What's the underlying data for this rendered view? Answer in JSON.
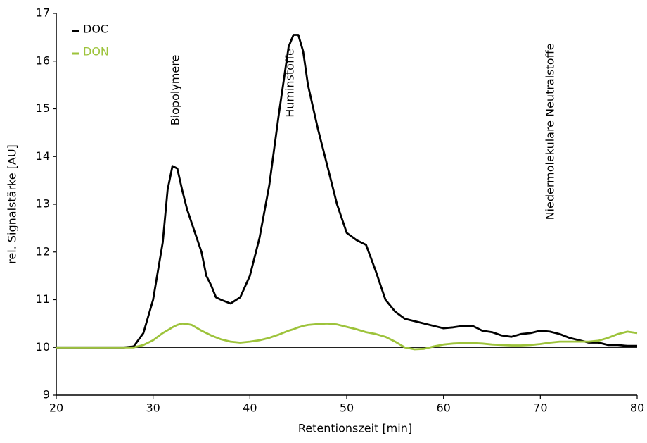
{
  "chart_data": {
    "type": "line",
    "x_label": "Retentionszeit [min]",
    "y_label": "rel. Signalstärke [AU]",
    "x": [
      20,
      24,
      27,
      28,
      29,
      30,
      31,
      31.5,
      32,
      32.5,
      33,
      33.5,
      34,
      35,
      35.5,
      36,
      36.5,
      37,
      38,
      39,
      40,
      41,
      42,
      43,
      44,
      44.5,
      45,
      45.5,
      46,
      47,
      48,
      49,
      50,
      51,
      52,
      53,
      54,
      55,
      56,
      57,
      58,
      59,
      60,
      61,
      62,
      63,
      64,
      65,
      66,
      67,
      68,
      69,
      70,
      71,
      72,
      73,
      74,
      75,
      76,
      77,
      78,
      79,
      80
    ],
    "series": [
      {
        "name": "DOC",
        "color": "#000000",
        "values": [
          10,
          10,
          10,
          10.02,
          10.3,
          11.0,
          12.2,
          13.3,
          13.8,
          13.75,
          13.3,
          12.9,
          12.6,
          12.0,
          11.5,
          11.3,
          11.05,
          11.0,
          10.92,
          11.05,
          11.5,
          12.3,
          13.4,
          14.9,
          16.3,
          16.55,
          16.55,
          16.2,
          15.5,
          14.6,
          13.8,
          13.0,
          12.4,
          12.25,
          12.15,
          11.6,
          11.0,
          10.75,
          10.6,
          10.55,
          10.5,
          10.45,
          10.4,
          10.42,
          10.45,
          10.45,
          10.35,
          10.32,
          10.25,
          10.22,
          10.28,
          10.3,
          10.35,
          10.33,
          10.28,
          10.2,
          10.15,
          10.1,
          10.1,
          10.05,
          10.05,
          10.03,
          10.03
        ]
      },
      {
        "name": "DON",
        "color": "#9dc33b",
        "values": [
          10,
          10,
          10,
          10,
          10.05,
          10.15,
          10.3,
          10.36,
          10.42,
          10.47,
          10.5,
          10.49,
          10.47,
          10.35,
          10.3,
          10.25,
          10.21,
          10.17,
          10.12,
          10.1,
          10.12,
          10.15,
          10.2,
          10.27,
          10.35,
          10.38,
          10.42,
          10.45,
          10.47,
          10.49,
          10.5,
          10.48,
          10.43,
          10.38,
          10.32,
          10.28,
          10.22,
          10.12,
          10.0,
          9.96,
          9.97,
          10.02,
          10.06,
          10.08,
          10.09,
          10.09,
          10.08,
          10.06,
          10.05,
          10.04,
          10.04,
          10.05,
          10.07,
          10.1,
          10.12,
          10.12,
          10.12,
          10.12,
          10.14,
          10.2,
          10.28,
          10.33,
          10.3
        ]
      }
    ],
    "annotations": [
      "Biopolymere",
      "Huminstoffe",
      "Niedermolekulare Neutralstoffe"
    ],
    "reference_line": 10,
    "xlim": [
      20,
      80
    ],
    "xticks": [
      20,
      30,
      40,
      50,
      60,
      70,
      80
    ],
    "ylim": [
      9,
      17
    ],
    "yticks": [
      9,
      10,
      11,
      12,
      13,
      14,
      15,
      16,
      17
    ],
    "legend": "upper-left"
  }
}
